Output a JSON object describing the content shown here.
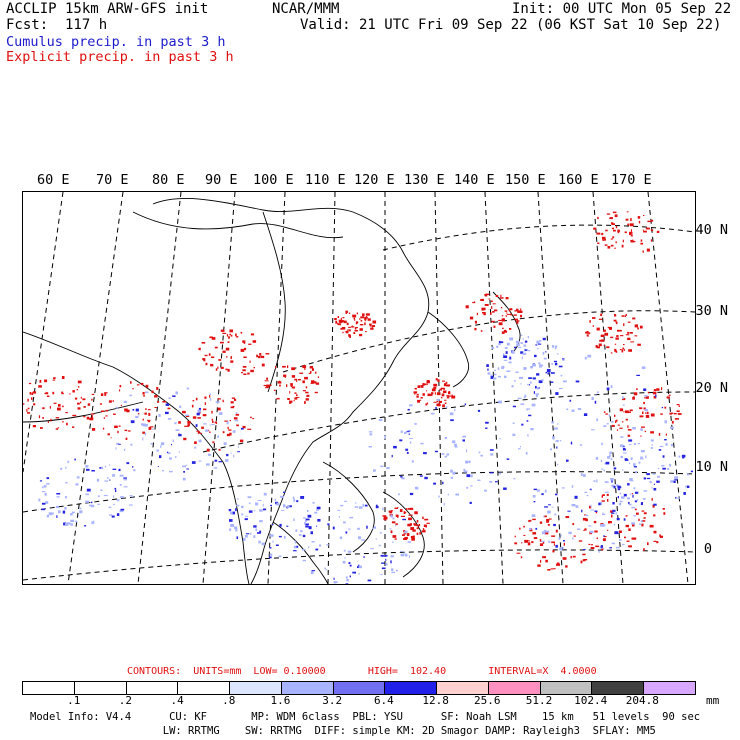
{
  "header": {
    "model_line": "ACCLIP 15km ARW-GFS init",
    "org": "NCAR/MMM",
    "init": "Init: 00 UTC Mon 05 Sep 22",
    "fcst": "Fcst:  117 h",
    "valid": "Valid: 21 UTC Fri 09 Sep 22 (06 KST Sat 10 Sep 22)",
    "legend_cumulus": "Cumulus precip. in past 3 h",
    "legend_explicit": "Explicit precip. in past 3 h"
  },
  "map": {
    "lon_labels": [
      "60 E",
      "70 E",
      "80 E",
      "90 E",
      "100 E",
      "110 E",
      "120 E",
      "130 E",
      "140 E",
      "150 E",
      "160 E",
      "170 E"
    ],
    "lat_labels": [
      "40 N",
      "30 N",
      "20 N",
      "10 N",
      "0"
    ],
    "colors": {
      "cumulus": "#2424e0",
      "explicit": "#e01010",
      "coast": "#000000",
      "grid": "#000000"
    }
  },
  "contours": "CONTOURS:  UNITS=mm  LOW= 0.10000       HIGH=  102.40       INTERVAL=X  4.0000",
  "colorbar": {
    "units": "mm",
    "labels": [
      ".1",
      ".2",
      ".4",
      ".8",
      "1.6",
      "3.2",
      "6.4",
      "12.8",
      "25.6",
      "51.2",
      "102.4",
      "204.8"
    ],
    "colors": [
      "#ffffff",
      "#ffffff",
      "#ffffff",
      "#ffffff",
      "#dde6ff",
      "#a8b4ff",
      "#7070f0",
      "#2020e8",
      "#ffd0d0",
      "#ff90c0",
      "#c0c0c0",
      "#404040",
      "#d8a8ff"
    ]
  },
  "footer": {
    "line1": "Model Info: V4.4      CU: KF       MP: WDM 6class  PBL: YSU      SF: Noah LSM    15 km   51 levels  90 sec",
    "line2": "                     LW: RRTMG    SW: RRTMG  DIFF: simple KM: 2D Smagor DAMP: Rayleigh3  SFLAY: MM5"
  }
}
